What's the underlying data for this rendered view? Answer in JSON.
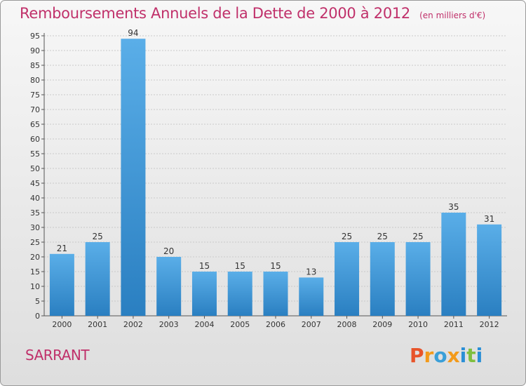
{
  "header": {
    "title": "Remboursements Annuels de la Dette de 2000 à 2012",
    "unit": "(en milliers d'€)"
  },
  "footer": {
    "commune": "SARRANT",
    "logo_text": "Proxiti"
  },
  "colors": {
    "title": "#c0306a",
    "bar_light": "#5aaee8",
    "bar_dark": "#2a7fc1",
    "logo_letters": [
      "#e8542a",
      "#f39a1a",
      "#3a9fd8",
      "#f39a1a",
      "#2a8fd6",
      "#7fbf3f",
      "#2a8fd6"
    ]
  },
  "chart_data": {
    "type": "bar",
    "title": "Remboursements Annuels de la Dette de 2000 à 2012",
    "unit_note": "(en milliers d'€)",
    "categories": [
      "2000",
      "2001",
      "2002",
      "2003",
      "2004",
      "2005",
      "2006",
      "2007",
      "2008",
      "2009",
      "2010",
      "2011",
      "2012"
    ],
    "values": [
      21,
      25,
      94,
      20,
      15,
      15,
      15,
      13,
      25,
      25,
      25,
      35,
      31
    ],
    "ylim": [
      0,
      95
    ],
    "yticks": [
      0,
      5,
      10,
      15,
      20,
      25,
      30,
      35,
      40,
      45,
      50,
      55,
      60,
      65,
      70,
      75,
      80,
      85,
      90,
      95
    ],
    "grid": true,
    "xlabel": "",
    "ylabel": ""
  }
}
